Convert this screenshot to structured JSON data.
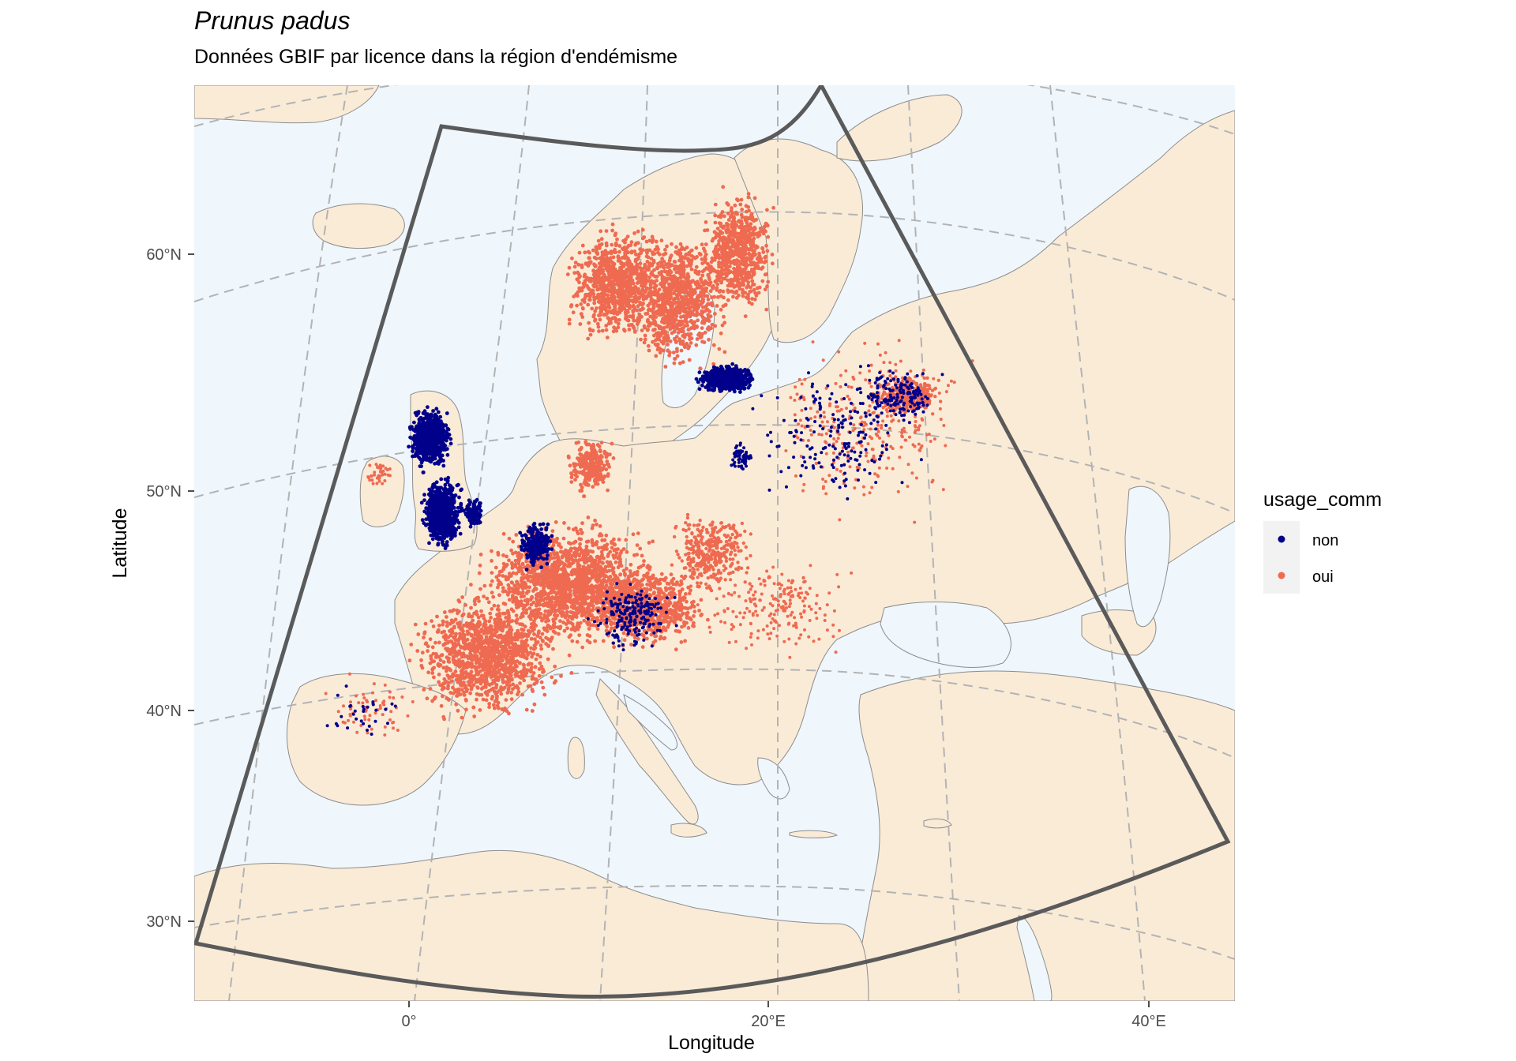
{
  "title": "Prunus padus",
  "subtitle": "Données GBIF par licence dans la région d'endémisme",
  "colors": {
    "sea": "#EFF6FC",
    "land": "#FAEBD7",
    "border": "#8c8c8c",
    "graticule": "#b3b3b3",
    "extent": "#5a5a5a",
    "non": "#00008B",
    "oui": "#EE6A50"
  },
  "chart_data": {
    "type": "scatter",
    "xlabel": "Longitude",
    "ylabel": "Latitude",
    "x_ticks": [
      "0°",
      "20°E",
      "40°E"
    ],
    "y_ticks": [
      "30°N",
      "40°N",
      "50°N",
      "60°N"
    ],
    "legend": {
      "title": "usage_comm",
      "position": "right",
      "entries": [
        {
          "label": "non",
          "color": "#00008B"
        },
        {
          "label": "oui",
          "color": "#EE6A50"
        }
      ]
    },
    "grid": true
  }
}
